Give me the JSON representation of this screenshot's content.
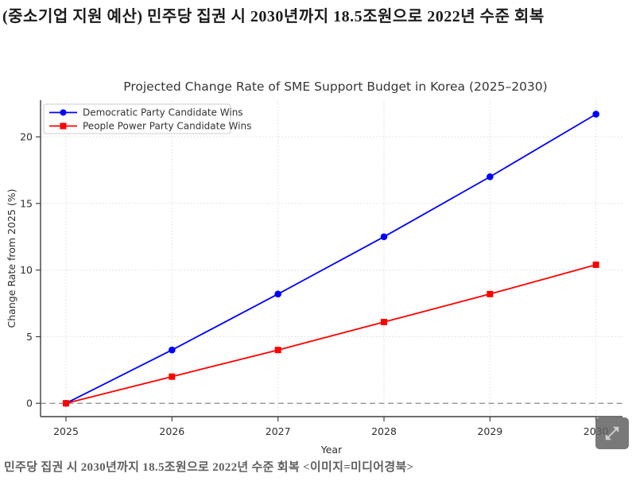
{
  "page": {
    "headline": "(중소기업 지원 예산) 민주당 집권 시 2030년까지 18.5조원으로 2022년 수준 회복",
    "caption": "민주당 집권 시 2030년까지 18.5조원으로 2022년 수준 회복 <이미지=미디어경북>"
  },
  "viewer": {
    "expand_icon": "open-in-full-arrows"
  },
  "chart_data": {
    "type": "line",
    "title": "Projected Change Rate of SME Support Budget in Korea (2025–2030)",
    "xlabel": "Year",
    "ylabel": "Change Rate from 2025 (%)",
    "x": [
      2025,
      2026,
      2027,
      2028,
      2029,
      2030
    ],
    "series": [
      {
        "name": "Democratic Party Candidate Wins",
        "color": "#0000ff",
        "marker": "circle",
        "values": [
          0,
          4.0,
          8.2,
          12.5,
          17.0,
          21.7
        ]
      },
      {
        "name": "People Power Party Candidate Wins",
        "color": "#ff0000",
        "marker": "square",
        "values": [
          0,
          2.0,
          4.0,
          6.1,
          8.2,
          10.4
        ]
      }
    ],
    "yticks": [
      0,
      5,
      10,
      15,
      20
    ],
    "xticks": [
      2025,
      2026,
      2027,
      2028,
      2029,
      2030
    ],
    "ylim": [
      -1.0,
      22.75
    ],
    "xlim": [
      2024.76,
      2030.25
    ],
    "grid": true,
    "grid_style": "dotted",
    "zero_line_dashed": true,
    "legend_position": "upper left",
    "axis_color": "#3f3f3f",
    "grid_color": "#dcdcdc",
    "background": "#ffffff"
  }
}
